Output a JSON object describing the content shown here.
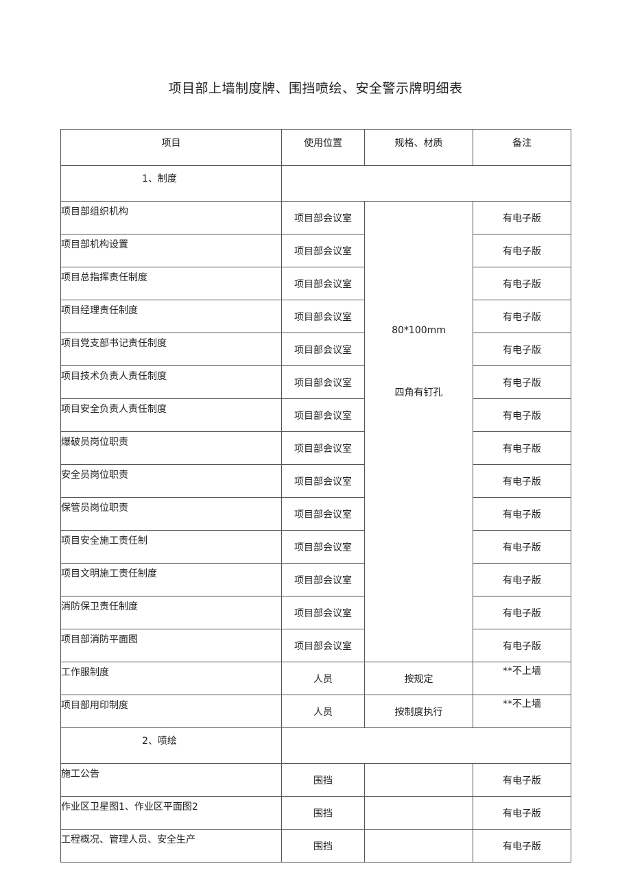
{
  "title": "项目部上墙制度牌、围挡喷绘、安全警示牌明细表",
  "headers": [
    "项目",
    "使用位置",
    "规格、材质",
    "备注"
  ],
  "sections": [
    {
      "label": "1、制度",
      "spec_lines": [
        "80*100mm",
        "四角有钉孔"
      ],
      "rows": [
        {
          "name": "项目部组织机构",
          "location": "项目部会议室",
          "remark": "有电子版"
        },
        {
          "name": "项目部机构设置",
          "location": "项目部会议室",
          "remark": "有电子版"
        },
        {
          "name": "项目总指挥责任制度",
          "location": "项目部会议室",
          "remark": "有电子版"
        },
        {
          "name": "项目经理责任制度",
          "location": "项目部会议室",
          "remark": "有电子版"
        },
        {
          "name": "项目党支部书记责任制度",
          "location": "项目部会议室",
          "remark": "有电子版"
        },
        {
          "name": "项目技术负责人责任制度",
          "location": "项目部会议室",
          "remark": "有电子版"
        },
        {
          "name": "项目安全负责人责任制度",
          "location": "项目部会议室",
          "remark": "有电子版"
        },
        {
          "name": "爆破员岗位职责",
          "location": "项目部会议室",
          "remark": "有电子版"
        },
        {
          "name": "安全员岗位职责",
          "location": "项目部会议室",
          "remark": "有电子版"
        },
        {
          "name": "保管员岗位职责",
          "location": "项目部会议室",
          "remark": "有电子版"
        },
        {
          "name": "项目安全施工责任制",
          "location": "项目部会议室",
          "remark": "有电子版"
        },
        {
          "name": "项目文明施工责任制度",
          "location": "项目部会议室",
          "remark": "有电子版"
        },
        {
          "name": "消防保卫责任制度",
          "location": "项目部会议室",
          "remark": "有电子版"
        },
        {
          "name": "项目部消防平面图",
          "location": "项目部会议室",
          "remark": "有电子版"
        }
      ],
      "extra_rows": [
        {
          "name": "工作服制度",
          "location": "人员",
          "spec": "按规定",
          "remark": "**不上墙"
        },
        {
          "name": "项目部用印制度",
          "location": "人员",
          "spec": "按制度执行",
          "remark": "**不上墙"
        }
      ]
    },
    {
      "label": "2、喷绘",
      "rows": [
        {
          "name": "施工公告",
          "location": "围挡",
          "spec": "",
          "remark": "有电子版"
        },
        {
          "name": "作业区卫星图1、作业区平面图2",
          "location": "围挡",
          "spec": "",
          "remark": "有电子版"
        },
        {
          "name": "工程概况、管理人员、安全生产",
          "location": "围挡",
          "spec": "",
          "remark": "有电子版"
        }
      ]
    }
  ]
}
